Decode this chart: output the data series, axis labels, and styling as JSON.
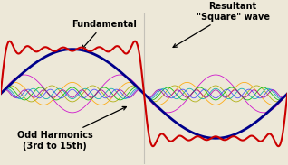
{
  "background_color": "#ede8d8",
  "fundamental_color": "#00008b",
  "square_wave_color": "#cc0000",
  "harmonic_colors": [
    "#cc00cc",
    "#ffa500",
    "#aaaa00",
    "#00bb00",
    "#00aaaa",
    "#4444ff",
    "#aa00aa"
  ],
  "harmonics": [
    3,
    5,
    7,
    9,
    11,
    13,
    15
  ],
  "amplitude_scale": 0.85
}
